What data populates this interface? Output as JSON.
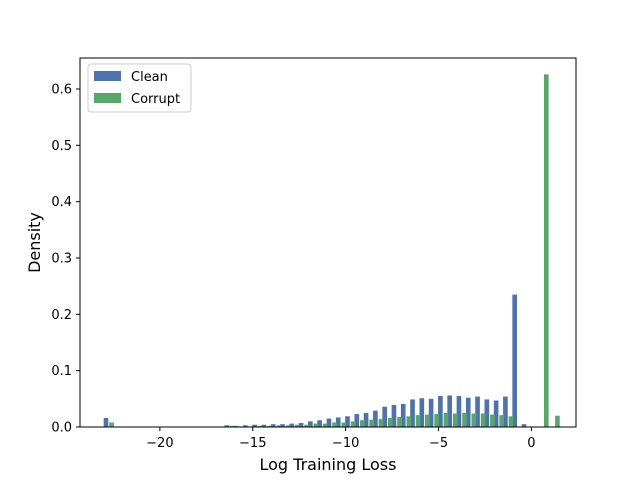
{
  "chart_data": {
    "type": "bar",
    "xlabel": "Log Training Loss",
    "ylabel": "Density",
    "xlim": [
      -24.3,
      2.4
    ],
    "ylim": [
      0,
      0.655
    ],
    "xticks": [
      -20,
      -15,
      -10,
      -5,
      0
    ],
    "xtick_labels": [
      "−20",
      "−15",
      "−10",
      "−5",
      "0"
    ],
    "yticks": [
      0.0,
      0.1,
      0.2,
      0.3,
      0.4,
      0.5,
      0.6
    ],
    "ytick_labels": [
      "0.0",
      "0.1",
      "0.2",
      "0.3",
      "0.4",
      "0.5",
      "0.6"
    ],
    "bin_width": 0.5,
    "legend_position": "upper-left",
    "series": [
      {
        "name": "Clean",
        "color": "#4c72b0",
        "x": [
          -22.9,
          -16.4,
          -15.9,
          -15.4,
          -14.9,
          -14.4,
          -13.9,
          -13.4,
          -12.9,
          -12.4,
          -11.9,
          -11.4,
          -10.9,
          -10.4,
          -9.9,
          -9.4,
          -8.9,
          -8.4,
          -7.9,
          -7.4,
          -6.9,
          -6.4,
          -5.9,
          -5.4,
          -4.9,
          -4.4,
          -3.9,
          -3.4,
          -2.9,
          -2.4,
          -1.9,
          -1.4,
          -0.9,
          -0.4,
          0.1,
          0.6,
          1.1
        ],
        "values": [
          0.016,
          0.003,
          0.002,
          0.003,
          0.004,
          0.004,
          0.005,
          0.005,
          0.006,
          0.007,
          0.01,
          0.012,
          0.015,
          0.017,
          0.019,
          0.023,
          0.025,
          0.029,
          0.036,
          0.039,
          0.041,
          0.049,
          0.051,
          0.05,
          0.055,
          0.056,
          0.055,
          0.052,
          0.054,
          0.049,
          0.047,
          0.054,
          0.235,
          0.005,
          0.0,
          0.0,
          0.0
        ]
      },
      {
        "name": "Corrupt",
        "color": "#55a868",
        "x": [
          -22.6,
          -16.1,
          -15.6,
          -15.1,
          -14.6,
          -14.1,
          -13.6,
          -13.1,
          -12.6,
          -12.1,
          -11.6,
          -11.1,
          -10.6,
          -10.1,
          -9.6,
          -9.1,
          -8.6,
          -8.1,
          -7.6,
          -7.1,
          -6.6,
          -6.1,
          -5.6,
          -5.1,
          -4.6,
          -4.1,
          -3.6,
          -3.1,
          -2.6,
          -2.1,
          -1.6,
          -1.1,
          0.8,
          1.4
        ],
        "values": [
          0.008,
          0.002,
          0.001,
          0.001,
          0.002,
          0.002,
          0.003,
          0.003,
          0.004,
          0.004,
          0.006,
          0.006,
          0.008,
          0.008,
          0.01,
          0.012,
          0.013,
          0.014,
          0.016,
          0.018,
          0.019,
          0.021,
          0.022,
          0.023,
          0.025,
          0.024,
          0.025,
          0.024,
          0.024,
          0.022,
          0.021,
          0.019,
          0.626,
          0.02
        ]
      }
    ]
  }
}
